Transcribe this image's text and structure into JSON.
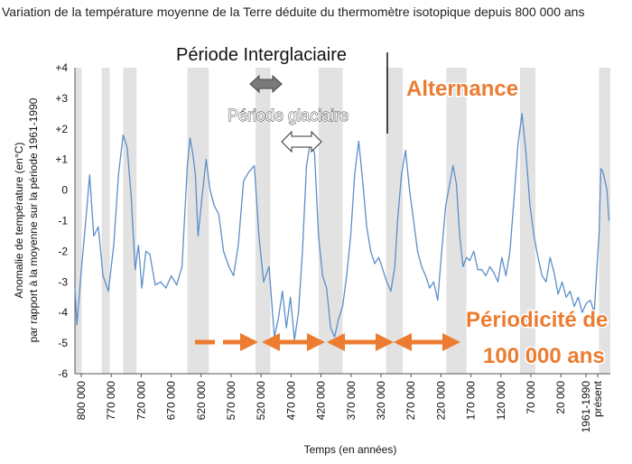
{
  "title": "Variation de la température moyenne de la Terre déduite du thermomètre isotopique depuis 800 000 ans",
  "annotations": {
    "interglacial": "Période Interglaciaire",
    "glacial": "Période glaciaire",
    "alternance": "Alternance",
    "periodicity_line1": "Périodicité  de",
    "periodicity_line2": "100 000 ans"
  },
  "colors": {
    "series": "#5b8fc7",
    "band": "#e2e2e2",
    "accent": "#ec7c30"
  },
  "chart_data": {
    "type": "line",
    "title": "Variation de la température moyenne de la Terre déduite du thermomètre isotopique depuis 800 000 ans",
    "xlabel": "Temps (en années)",
    "ylabel": "Anomalie de température (en°C) par rapport à la moyenne sur la période 1961-1990",
    "ylabel_lines": [
      "Anomalie de température (en°C)",
      "par rapport à la moyenne sur la période 1961-1990"
    ],
    "y_ticks": [
      "+4",
      "+3",
      "+2",
      "+1",
      "0",
      "-1",
      "-2",
      "-3",
      "-4",
      "-5",
      "-6"
    ],
    "ylim": [
      -6,
      4
    ],
    "x_ticks": [
      "800 000",
      "770 000",
      "720 000",
      "670 000",
      "620 000",
      "570 000",
      "520 000",
      "470 000",
      "420 000",
      "370 000",
      "320 000",
      "270 000",
      "220 000",
      "170 000",
      "120 000",
      "70 000",
      "20 000",
      "1961-1990",
      "présent"
    ],
    "x_axis_direction": "years before present, decreasing to the right",
    "grid": "alternating vertical grey bands at interglacial periods",
    "series": [
      {
        "x_years_ago": [
          800000,
          797000,
          790000,
          783000,
          778000,
          772000,
          765000,
          758000,
          750000,
          742000,
          735000,
          728000,
          722000,
          716000,
          710000,
          705000,
          700000,
          694000,
          688000,
          680000,
          672000,
          664000,
          656000,
          648000,
          640000,
          632000,
          628000,
          624000,
          620000,
          616000,
          610000,
          604000,
          598000,
          592000,
          585000,
          578000,
          570000,
          563000,
          556000,
          548000,
          540000,
          532000,
          525000,
          518000,
          510000,
          502000,
          496000,
          490000,
          484000,
          478000,
          472000,
          466000,
          460000,
          454000,
          448000,
          442000,
          436000,
          430000,
          424000,
          418000,
          412000,
          406000,
          400000,
          394000,
          388000,
          382000,
          376000,
          370000,
          364000,
          358000,
          352000,
          346000,
          340000,
          334000,
          328000,
          322000,
          318000,
          312000,
          306000,
          300000,
          294000,
          288000,
          282000,
          276000,
          270000,
          264000,
          258000,
          252000,
          246000,
          240000,
          235000,
          230000,
          225000,
          220000,
          215000,
          210000,
          204000,
          198000,
          192000,
          186000,
          180000,
          174000,
          168000,
          162000,
          156000,
          150000,
          144000,
          138000,
          132000,
          126000,
          120000,
          114000,
          108000,
          102000,
          96000,
          90000,
          84000,
          78000,
          72000,
          66000,
          60000,
          54000,
          48000,
          42000,
          36000,
          30000,
          24000,
          20000,
          17000,
          14000,
          11000,
          8000,
          5000,
          2000
        ],
        "values": [
          -3.2,
          -4.4,
          -2.5,
          -0.8,
          0.5,
          -1.5,
          -1.2,
          -2.8,
          -3.3,
          -1.8,
          0.5,
          1.8,
          1.4,
          -0.2,
          -2.6,
          -1.8,
          -3.2,
          -2.0,
          -2.1,
          -3.1,
          -3.0,
          -3.2,
          -2.8,
          -3.1,
          -2.5,
          0.8,
          1.7,
          1.2,
          0.5,
          -1.5,
          -0.2,
          1.0,
          0.0,
          -0.5,
          -0.8,
          -2.0,
          -2.5,
          -2.8,
          -1.8,
          0.3,
          0.6,
          0.8,
          -1.5,
          -3.0,
          -2.5,
          -4.8,
          -4.2,
          -3.3,
          -4.5,
          -3.5,
          -4.9,
          -4.0,
          -2.0,
          0.8,
          1.6,
          1.2,
          -1.5,
          -2.8,
          -3.2,
          -4.5,
          -4.8,
          -4.2,
          -3.8,
          -2.8,
          -1.5,
          0.5,
          1.6,
          0.3,
          -1.2,
          -2.0,
          -2.4,
          -2.2,
          -2.6,
          -3.0,
          -3.3,
          -2.5,
          -1.0,
          0.5,
          1.3,
          0.0,
          -1.0,
          -2.0,
          -2.5,
          -2.8,
          -3.2,
          -3.0,
          -3.6,
          -2.0,
          -0.5,
          0.2,
          0.8,
          0.2,
          -1.5,
          -2.5,
          -2.2,
          -2.3,
          -2.0,
          -2.6,
          -2.6,
          -2.8,
          -2.5,
          -2.7,
          -3.0,
          -2.2,
          -2.8,
          -2.0,
          -0.3,
          1.5,
          2.5,
          1.2,
          -0.5,
          -1.5,
          -2.2,
          -2.8,
          -3.0,
          -2.2,
          -2.7,
          -3.4,
          -3.0,
          -3.5,
          -3.3,
          -3.8,
          -3.5,
          -4.0,
          -3.7,
          -3.6,
          -4.0,
          -2.5,
          -1.5,
          0.7,
          0.6,
          0.3,
          0.0,
          -1.0
        ],
        "bands_interglacial": [
          [
            800000,
            790000
          ],
          [
            760000,
            748000
          ],
          [
            728000,
            708000
          ],
          [
            632000,
            600000
          ],
          [
            530000,
            508000
          ],
          [
            436000,
            400000
          ],
          [
            335000,
            310000
          ],
          [
            245000,
            215000
          ],
          [
            135000,
            112000
          ],
          [
            17000,
            0
          ]
        ]
      }
    ],
    "arrows": "Periodicity arrows span roughly 100 000-year intervals"
  }
}
